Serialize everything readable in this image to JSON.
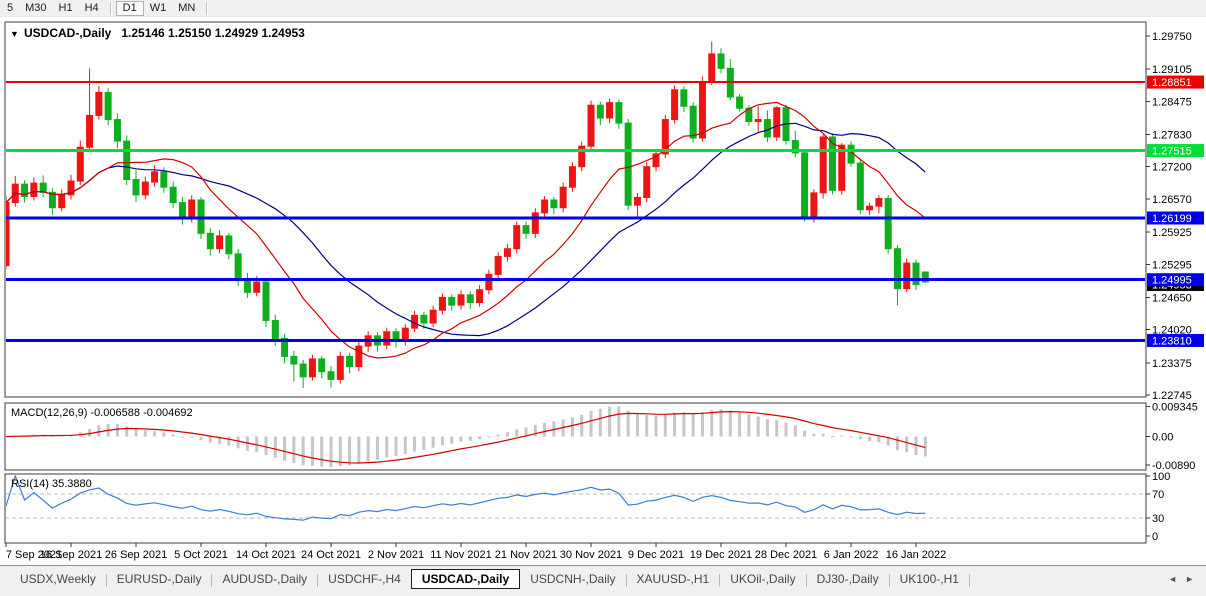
{
  "toolbar": {
    "buttons": [
      {
        "label": "5",
        "active": false
      },
      {
        "label": "M30",
        "active": false
      },
      {
        "label": "H1",
        "active": false
      },
      {
        "label": "H4",
        "active": false
      },
      {
        "label": "D1",
        "active": true
      },
      {
        "label": "W1",
        "active": false
      },
      {
        "label": "MN",
        "active": false
      }
    ]
  },
  "chart_title": {
    "dropdown_icon": "▼",
    "symbol": "USDCAD-,Daily",
    "ohlc": "1.25146 1.25150 1.24929 1.24953"
  },
  "chart_data": {
    "type": "candlestick",
    "symbol": "USDCAD",
    "timeframe": "Daily",
    "last_ohlc": {
      "open": "1.25146",
      "high": "1.25150",
      "low": "1.24929",
      "close": "1.24953"
    },
    "y_ticks": [
      "1.29750",
      "1.29105",
      "1.28475",
      "1.27830",
      "1.27200",
      "1.26570",
      "1.25925",
      "1.25295",
      "1.24650",
      "1.24020",
      "1.23375",
      "1.22745"
    ],
    "x_labels": [
      "7 Sep 2021",
      "16 Sep 2021",
      "26 Sep 2021",
      "5 Oct 2021",
      "14 Oct 2021",
      "24 Oct 2021",
      "2 Nov 2021",
      "11 Nov 2021",
      "21 Nov 2021",
      "30 Nov 2021",
      "9 Dec 2021",
      "19 Dec 2021",
      "28 Dec 2021",
      "6 Jan 2022",
      "16 Jan 2022"
    ],
    "levels": [
      {
        "label": "1.28851",
        "value": 1.28851,
        "color": "#ee0000",
        "width": 2
      },
      {
        "label": "1.27515",
        "value": 1.27515,
        "color": "#00de3a",
        "width": 3
      },
      {
        "label": "1.26199",
        "value": 1.26199,
        "color": "#0000ee",
        "width": 3
      },
      {
        "label": "1.24995",
        "value": 1.24995,
        "color": "#0000ee",
        "width": 3
      },
      {
        "label": "1.23810",
        "value": 1.2381,
        "color": "#0000ee",
        "width": 3
      }
    ],
    "current_price": {
      "label": "1.24953",
      "value": 1.24953,
      "bg": "#000000"
    },
    "ohlc": [
      [
        1.2527,
        1.2662,
        1.252,
        1.265
      ],
      [
        1.265,
        1.2702,
        1.2642,
        1.2686
      ],
      [
        1.2686,
        1.2694,
        1.265,
        1.2662
      ],
      [
        1.2662,
        1.2699,
        1.2654,
        1.2688
      ],
      [
        1.2688,
        1.2703,
        1.2661,
        1.267
      ],
      [
        1.267,
        1.2678,
        1.2626,
        1.264
      ],
      [
        1.264,
        1.2676,
        1.2633,
        1.2665
      ],
      [
        1.2665,
        1.2704,
        1.2656,
        1.2692
      ],
      [
        1.2692,
        1.2771,
        1.2684,
        1.2758
      ],
      [
        1.2758,
        1.2912,
        1.2751,
        1.282
      ],
      [
        1.282,
        1.2877,
        1.2812,
        1.2865
      ],
      [
        1.2865,
        1.2873,
        1.2801,
        1.2812
      ],
      [
        1.2812,
        1.2824,
        1.2756,
        1.277
      ],
      [
        1.277,
        1.2781,
        1.2684,
        1.2695
      ],
      [
        1.2695,
        1.2713,
        1.2651,
        1.2665
      ],
      [
        1.2665,
        1.2701,
        1.2656,
        1.269
      ],
      [
        1.269,
        1.2723,
        1.2681,
        1.271
      ],
      [
        1.271,
        1.2719,
        1.2669,
        1.268
      ],
      [
        1.268,
        1.2691,
        1.2639,
        1.265
      ],
      [
        1.265,
        1.2661,
        1.2607,
        1.262
      ],
      [
        1.262,
        1.2664,
        1.2611,
        1.2655
      ],
      [
        1.2655,
        1.2661,
        1.2579,
        1.259
      ],
      [
        1.259,
        1.2601,
        1.2547,
        1.256
      ],
      [
        1.256,
        1.2596,
        1.2551,
        1.2585
      ],
      [
        1.2585,
        1.2591,
        1.2539,
        1.255
      ],
      [
        1.255,
        1.2559,
        1.2487,
        1.25
      ],
      [
        1.25,
        1.2513,
        1.2464,
        1.2475
      ],
      [
        1.2475,
        1.2506,
        1.2467,
        1.2495
      ],
      [
        1.2495,
        1.2501,
        1.2407,
        1.242
      ],
      [
        1.242,
        1.2431,
        1.2371,
        1.2385
      ],
      [
        1.2385,
        1.2394,
        1.2337,
        1.235
      ],
      [
        1.235,
        1.2361,
        1.2301,
        1.2335
      ],
      [
        1.2335,
        1.2343,
        1.2288,
        1.231
      ],
      [
        1.231,
        1.2353,
        1.2303,
        1.2345
      ],
      [
        1.2345,
        1.2351,
        1.2307,
        1.232
      ],
      [
        1.232,
        1.2331,
        1.2289,
        1.2305
      ],
      [
        1.2305,
        1.2359,
        1.2297,
        1.235
      ],
      [
        1.235,
        1.2357,
        1.2317,
        1.233
      ],
      [
        1.233,
        1.2379,
        1.2321,
        1.237
      ],
      [
        1.237,
        1.2399,
        1.2359,
        1.239
      ],
      [
        1.239,
        1.2397,
        1.2359,
        1.2372
      ],
      [
        1.2372,
        1.2406,
        1.2364,
        1.2398
      ],
      [
        1.2398,
        1.2405,
        1.2367,
        1.238
      ],
      [
        1.238,
        1.2413,
        1.2371,
        1.2405
      ],
      [
        1.2405,
        1.2439,
        1.2397,
        1.243
      ],
      [
        1.243,
        1.2437,
        1.2404,
        1.2415
      ],
      [
        1.2415,
        1.2449,
        1.2407,
        1.244
      ],
      [
        1.244,
        1.2473,
        1.2431,
        1.2465
      ],
      [
        1.2465,
        1.2471,
        1.2439,
        1.245
      ],
      [
        1.245,
        1.2479,
        1.2441,
        1.247
      ],
      [
        1.247,
        1.2477,
        1.2443,
        1.2455
      ],
      [
        1.2455,
        1.2489,
        1.2447,
        1.248
      ],
      [
        1.248,
        1.2519,
        1.2471,
        1.251
      ],
      [
        1.251,
        1.2553,
        1.2501,
        1.2545
      ],
      [
        1.2545,
        1.2569,
        1.2535,
        1.256
      ],
      [
        1.256,
        1.2613,
        1.2551,
        1.2605
      ],
      [
        1.2605,
        1.2613,
        1.2579,
        1.259
      ],
      [
        1.259,
        1.2639,
        1.2581,
        1.263
      ],
      [
        1.263,
        1.2663,
        1.2621,
        1.2655
      ],
      [
        1.2655,
        1.2661,
        1.2627,
        1.264
      ],
      [
        1.264,
        1.2689,
        1.2631,
        1.268
      ],
      [
        1.268,
        1.2729,
        1.2671,
        1.272
      ],
      [
        1.272,
        1.2769,
        1.2711,
        1.276
      ],
      [
        1.276,
        1.2849,
        1.2751,
        1.284
      ],
      [
        1.284,
        1.2847,
        1.2801,
        1.2815
      ],
      [
        1.2815,
        1.2853,
        1.2805,
        1.2845
      ],
      [
        1.2845,
        1.2851,
        1.2794,
        1.2805
      ],
      [
        1.2805,
        1.2813,
        1.2635,
        1.2645
      ],
      [
        1.2645,
        1.2669,
        1.2621,
        1.266
      ],
      [
        1.266,
        1.2729,
        1.2651,
        1.272
      ],
      [
        1.272,
        1.2753,
        1.2711,
        1.2745
      ],
      [
        1.2745,
        1.2821,
        1.2737,
        1.2812
      ],
      [
        1.2812,
        1.2879,
        1.2804,
        1.287
      ],
      [
        1.287,
        1.2877,
        1.2827,
        1.2838
      ],
      [
        1.2838,
        1.2846,
        1.2767,
        1.2776
      ],
      [
        1.2776,
        1.2896,
        1.2769,
        1.2886
      ],
      [
        1.2886,
        1.2964,
        1.2879,
        1.294
      ],
      [
        1.294,
        1.2951,
        1.2902,
        1.2912
      ],
      [
        1.2912,
        1.293,
        1.285,
        1.2856
      ],
      [
        1.2856,
        1.2862,
        1.2828,
        1.2834
      ],
      [
        1.2834,
        1.284,
        1.28,
        1.2808
      ],
      [
        1.2808,
        1.2838,
        1.2788,
        1.2812
      ],
      [
        1.2812,
        1.283,
        1.2768,
        1.2778
      ],
      [
        1.2778,
        1.2838,
        1.277,
        1.2835
      ],
      [
        1.2835,
        1.2841,
        1.2763,
        1.2771
      ],
      [
        1.2771,
        1.279,
        1.2738,
        1.2747
      ],
      [
        1.2747,
        1.2753,
        1.2613,
        1.2622
      ],
      [
        1.2622,
        1.2676,
        1.2611,
        1.2669
      ],
      [
        1.2669,
        1.2783,
        1.2658,
        1.2778
      ],
      [
        1.2778,
        1.2785,
        1.2666,
        1.2674
      ],
      [
        1.2674,
        1.2766,
        1.2665,
        1.2762
      ],
      [
        1.2762,
        1.2769,
        1.272,
        1.2727
      ],
      [
        1.2727,
        1.2734,
        1.2628,
        1.2636
      ],
      [
        1.2636,
        1.265,
        1.2626,
        1.2643
      ],
      [
        1.2643,
        1.2664,
        1.2629,
        1.2658
      ],
      [
        1.2658,
        1.2665,
        1.255,
        1.256
      ],
      [
        1.256,
        1.2567,
        1.245,
        1.2482
      ],
      [
        1.2482,
        1.2541,
        1.2475,
        1.2532
      ],
      [
        1.2532,
        1.2539,
        1.2479,
        1.249
      ],
      [
        1.25146,
        1.2515,
        1.24929,
        1.24953
      ]
    ],
    "indicators": {
      "ma_fast": {
        "period": 12,
        "color": "#d40000"
      },
      "ma_slow": {
        "period": 24,
        "color": "#000080"
      },
      "macd": {
        "name": "MACD(12,26,9)",
        "fast": 12,
        "slow": 26,
        "signal_period": 9,
        "value": "-0.006588",
        "signal_value": "-0.004692",
        "tick_values": [
          0.009345,
          0,
          -0.0089
        ],
        "tick_labels": [
          "0.009345",
          "0.00",
          "-0.00890"
        ],
        "hist_color": "#c6c6c6",
        "line_color": "#d40000"
      },
      "rsi": {
        "name": "RSI(14)",
        "period": 14,
        "value": "35.3880",
        "line_color": "#3a7fd5",
        "levels": [
          70,
          30
        ],
        "tick_values": [
          100,
          70,
          30,
          0
        ],
        "tick_labels": [
          "100",
          "70",
          "30",
          "0"
        ]
      }
    },
    "colors": {
      "bg": "#ffffff",
      "border": "#3c3c3c",
      "up": "#ee1414",
      "down": "#0fae1e",
      "chrome": "#f0f0f0",
      "axis_text": "#000000"
    }
  },
  "tabs": {
    "items": [
      "USDX,Weekly",
      "EURUSD-,Daily",
      "AUDUSD-,Daily",
      "USDCHF-,H4",
      "USDCAD-,Daily",
      "USDCNH-,Daily",
      "XAUUSD-,H1",
      "UKOil-,Daily",
      "DJ30-,Daily",
      "UK100-,H1"
    ],
    "active_index": 4,
    "scroll_left": "◄",
    "scroll_right": "►"
  }
}
